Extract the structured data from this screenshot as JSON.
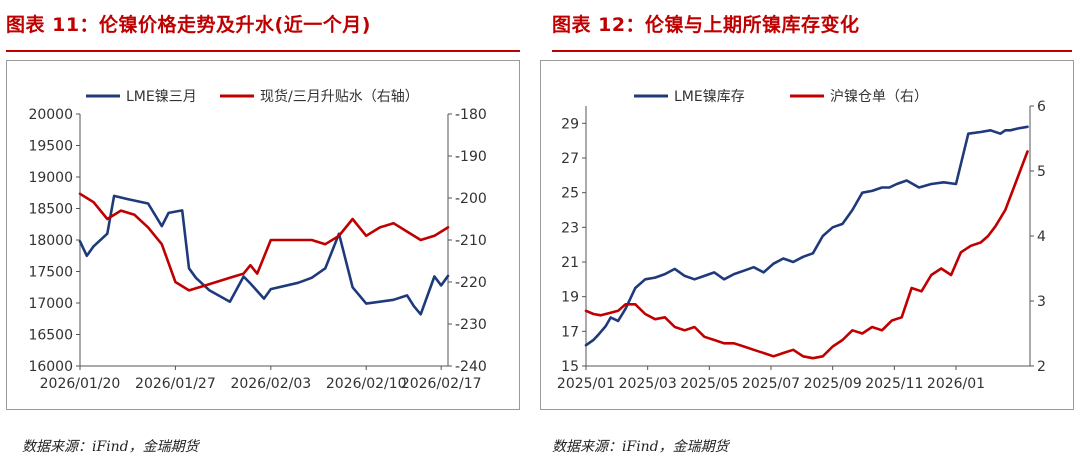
{
  "panels": [
    {
      "title": "图表 11：伦镍价格走势及升水(近一个月)",
      "source": "数据来源：iFind，金瑞期货"
    },
    {
      "title": "图表 12：伦镍与上期所镍库存变化",
      "source": "数据来源：iFind，金瑞期货"
    }
  ],
  "colors": {
    "navy": "#1f3a7a",
    "red": "#c00000"
  },
  "chart_data": [
    {
      "type": "line",
      "title": "伦镍价格走势及升水(近一个月)",
      "legend": [
        "LME镍三月",
        "现货/三月升贴水（右轴）"
      ],
      "legend_position": "top",
      "x_ticks": [
        "2026/01/20",
        "2026/01/27",
        "2026/02/03",
        "2026/02/10",
        "2026/02/17"
      ],
      "y_left": {
        "range": [
          16000,
          20000
        ],
        "ticks": [
          "16000",
          "16500",
          "17000",
          "17500",
          "18000",
          "18500",
          "19000",
          "19500",
          "20000"
        ]
      },
      "y_right": {
        "range": [
          -240,
          -180
        ],
        "ticks": [
          "-180",
          "-190",
          "-200",
          "-210",
          "-220",
          "-230",
          "-240"
        ]
      },
      "series": [
        {
          "name": "LME镍三月",
          "axis": "left",
          "x": [
            0,
            0.5,
            1,
            2,
            2.5,
            3.5,
            5,
            6,
            6.5,
            7.5,
            8,
            8.5,
            9.5,
            11,
            12,
            12.5,
            13.5,
            14,
            16,
            17,
            18,
            19,
            20,
            21,
            23,
            24,
            24.5,
            25,
            26,
            26.5,
            27
          ],
          "values": [
            17980,
            17750,
            17900,
            18100,
            18700,
            18650,
            18580,
            18220,
            18430,
            18470,
            17550,
            17400,
            17200,
            17020,
            17420,
            17310,
            17070,
            17220,
            17320,
            17400,
            17550,
            18100,
            17250,
            16990,
            17050,
            17120,
            16950,
            16820,
            17420,
            17280,
            17430
          ]
        },
        {
          "name": "现货/三月升贴水（右轴）",
          "axis": "right",
          "x": [
            0,
            0.5,
            1,
            2,
            3,
            4,
            5,
            6,
            7,
            8,
            9,
            10,
            11,
            12,
            12.5,
            13,
            14,
            15,
            16,
            17,
            18,
            19,
            20,
            20.5,
            21,
            22,
            23,
            24,
            25,
            26,
            26.5,
            27
          ],
          "values": [
            -199,
            -200,
            -201,
            -205,
            -203,
            -204,
            -207,
            -211,
            -220,
            -222,
            -221,
            -220,
            -219,
            -218,
            -216,
            -218,
            -210,
            -210,
            -210,
            -210,
            -211,
            -209,
            -205,
            -207,
            -209,
            -207,
            -206,
            -208,
            -210,
            -209,
            -208,
            -207
          ]
        }
      ]
    },
    {
      "type": "line",
      "title": "伦镍与上期所镍库存变化",
      "legend": [
        "LME镍库存",
        "沪镍仓单（右）"
      ],
      "legend_position": "top",
      "x_ticks": [
        "2025/01",
        "2025/03",
        "2025/05",
        "2025/07",
        "2025/09",
        "2025/11",
        "2026/01"
      ],
      "y_left": {
        "range": [
          15,
          30
        ],
        "ticks": [
          "15",
          "17",
          "19",
          "21",
          "23",
          "25",
          "27",
          "29"
        ]
      },
      "y_right": {
        "range": [
          2,
          6
        ],
        "ticks": [
          "2",
          "3",
          "4",
          "5",
          "6"
        ]
      },
      "series": [
        {
          "name": "LME镍库存",
          "axis": "left",
          "x": [
            0,
            0.3,
            0.5,
            0.8,
            1,
            1.3,
            1.6,
            2,
            2.4,
            2.8,
            3.2,
            3.6,
            4,
            4.4,
            4.8,
            5.2,
            5.6,
            6,
            6.4,
            6.8,
            7.2,
            7.6,
            8,
            8.4,
            8.8,
            9.2,
            9.6,
            10,
            10.4,
            10.8,
            11.2,
            11.6,
            12,
            12.3,
            12.6,
            13,
            13.5,
            14,
            14.5,
            15,
            15.5,
            16,
            16.4,
            16.8,
            17,
            17.2,
            17.5,
            17.9
          ],
          "values": [
            16.2,
            16.5,
            16.8,
            17.3,
            17.8,
            17.6,
            18.3,
            19.5,
            20.0,
            20.1,
            20.3,
            20.6,
            20.2,
            20.0,
            20.2,
            20.4,
            20.0,
            20.3,
            20.5,
            20.7,
            20.4,
            20.9,
            21.2,
            21.0,
            21.3,
            21.5,
            22.5,
            23.0,
            23.2,
            24.0,
            25.0,
            25.1,
            25.3,
            25.3,
            25.5,
            25.7,
            25.3,
            25.5,
            25.6,
            25.5,
            28.4,
            28.5,
            28.6,
            28.4,
            28.6,
            28.6,
            28.7,
            28.8
          ]
        },
        {
          "name": "沪镍仓单（右）",
          "axis": "right",
          "x": [
            0,
            0.3,
            0.6,
            1,
            1.3,
            1.6,
            2,
            2.4,
            2.8,
            3.2,
            3.6,
            4,
            4.4,
            4.8,
            5.2,
            5.6,
            6,
            6.4,
            6.8,
            7.2,
            7.6,
            8,
            8.4,
            8.8,
            9.2,
            9.6,
            10,
            10.4,
            10.8,
            11.2,
            11.6,
            12,
            12.4,
            12.8,
            13.2,
            13.6,
            14,
            14.4,
            14.8,
            15.2,
            15.6,
            16,
            16.3,
            16.6,
            17,
            17.3,
            17.6,
            17.9
          ],
          "values": [
            2.85,
            2.8,
            2.78,
            2.82,
            2.85,
            2.95,
            2.95,
            2.8,
            2.72,
            2.75,
            2.6,
            2.55,
            2.6,
            2.45,
            2.4,
            2.35,
            2.35,
            2.3,
            2.25,
            2.2,
            2.15,
            2.2,
            2.25,
            2.15,
            2.12,
            2.15,
            2.3,
            2.4,
            2.55,
            2.5,
            2.6,
            2.55,
            2.7,
            2.75,
            3.2,
            3.15,
            3.4,
            3.5,
            3.4,
            3.75,
            3.85,
            3.9,
            4.0,
            4.15,
            4.4,
            4.7,
            5.0,
            5.3
          ]
        }
      ]
    }
  ]
}
